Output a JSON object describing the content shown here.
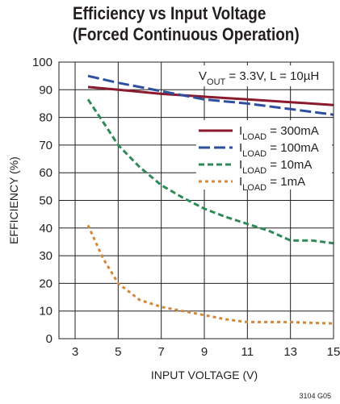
{
  "chart_data": {
    "type": "line",
    "title_line1": "Efficiency vs Input Voltage",
    "title_line2": "(Forced Continuous Operation)",
    "xlabel": "INPUT VOLTAGE (V)",
    "ylabel": "EFFICIENCY (%)",
    "xlim": [
      3,
      15
    ],
    "ylim": [
      0,
      100
    ],
    "xticks": [
      3,
      5,
      7,
      9,
      11,
      13,
      15
    ],
    "yticks": [
      0,
      10,
      20,
      30,
      40,
      50,
      60,
      70,
      80,
      90,
      100
    ],
    "grid": true,
    "legend_position": "right",
    "condition": {
      "pre": "V",
      "sub": "OUT",
      "post": " = 3.3V, L = 10µH"
    },
    "series": [
      {
        "label_pre": "I",
        "label_sub": "LOAD",
        "label_post": " = 300mA",
        "color": "#8b1a2e",
        "dash": "none",
        "x": [
          3.6,
          5,
          7,
          9,
          11,
          13,
          15
        ],
        "y": [
          91,
          90,
          88.5,
          87.5,
          86.5,
          85.5,
          84.5
        ]
      },
      {
        "label_pre": "I",
        "label_sub": "LOAD",
        "label_post": " = 100mA",
        "color": "#2e4e9e",
        "dash": "14,5",
        "x": [
          3.6,
          5,
          7,
          9,
          11,
          13,
          15
        ],
        "y": [
          95,
          92.5,
          89.5,
          86.5,
          85,
          83,
          81
        ]
      },
      {
        "label_pre": "I",
        "label_sub": "LOAD",
        "label_post": " = 10mA",
        "color": "#2e8b57",
        "dash": "7,4",
        "x": [
          3.6,
          4.5,
          5,
          6,
          7,
          8,
          9,
          10,
          11,
          12,
          13,
          14,
          15
        ],
        "y": [
          86.5,
          76,
          70,
          62,
          55.5,
          51,
          47,
          44,
          41.5,
          39,
          35.5,
          35.5,
          34.5
        ]
      },
      {
        "label_pre": "I",
        "label_sub": "LOAD",
        "label_post": " = 1mA",
        "color": "#d2883a",
        "dash": "4,4",
        "x": [
          3.6,
          4.3,
          5,
          6,
          7,
          8,
          9,
          10,
          11,
          12,
          13,
          14,
          15
        ],
        "y": [
          41,
          29,
          20,
          14,
          11.5,
          10,
          8.5,
          7,
          6,
          6,
          6,
          5.7,
          5.5
        ]
      }
    ]
  },
  "figure_id": "3104 G05"
}
